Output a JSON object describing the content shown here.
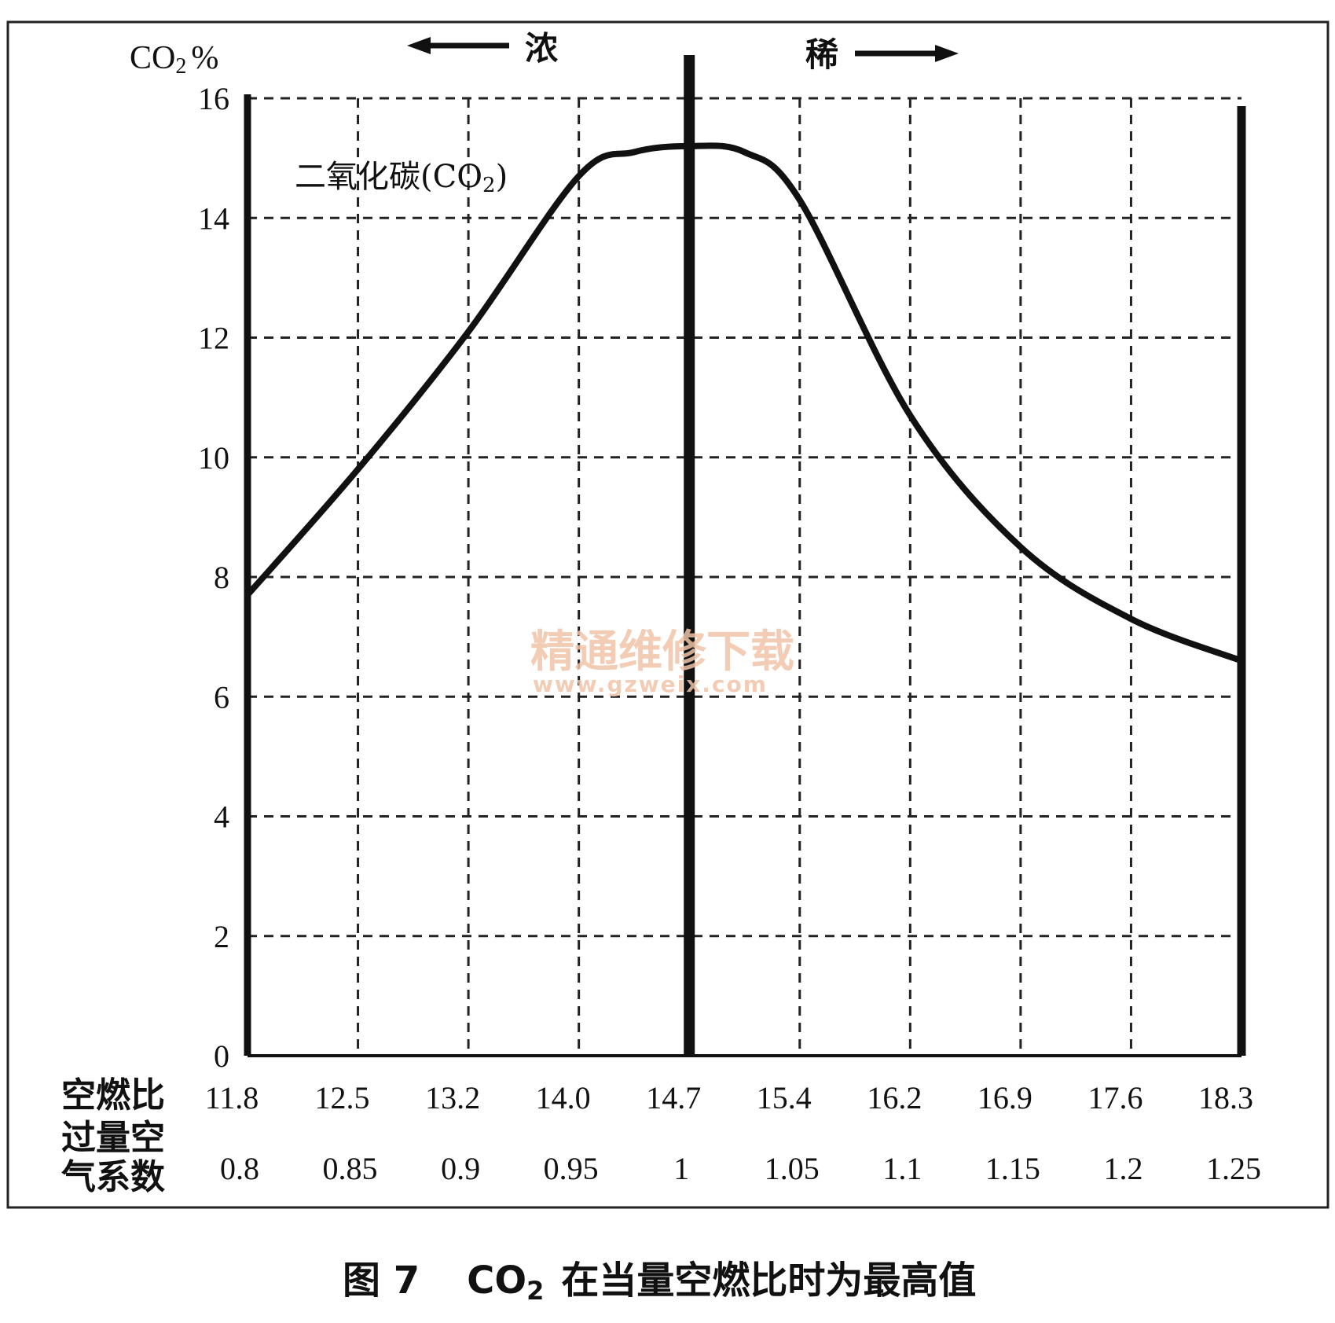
{
  "chart_data": {
    "type": "line",
    "ylabel_prefix": "CO",
    "ylabel_sub": "2",
    "ylabel_suffix": "%",
    "ylim": [
      0,
      16
    ],
    "yticks": [
      0,
      2,
      4,
      6,
      8,
      10,
      12,
      14,
      16
    ],
    "grid": true,
    "x_row_label": "空燃比",
    "x_ticks_afr": [
      "11.8",
      "12.5",
      "13.2",
      "14.0",
      "14.7",
      "15.4",
      "16.2",
      "16.9",
      "17.6",
      "18.3"
    ],
    "x_row2_label_line1": "过量空",
    "x_row2_label_line2": "气系数",
    "x_ticks_lambda": [
      "0.8",
      "0.85",
      "0.9",
      "0.95",
      "1",
      "1.05",
      "1.1",
      "1.15",
      "1.2",
      "1.25"
    ],
    "rich_label": "浓",
    "lean_label": "稀",
    "series": [
      {
        "name_prefix": "二氧化碳(CO",
        "name_sub": "2",
        "name_suffix": ")",
        "x": [
          0.8,
          0.85,
          0.9,
          0.95,
          0.975,
          1.0,
          1.025,
          1.05,
          1.1,
          1.15,
          1.2,
          1.25
        ],
        "y": [
          7.7,
          9.8,
          12.1,
          14.7,
          15.1,
          15.2,
          15.1,
          14.3,
          10.7,
          8.5,
          7.3,
          6.6
        ]
      }
    ],
    "stoich_x": 1.0
  },
  "caption": {
    "fig": "图 7",
    "co": "CO",
    "sub": "2",
    "text": "在当量空燃比时为最高值"
  },
  "watermark": {
    "cn": "精通维修下载",
    "url": "www.gzweix.com"
  }
}
